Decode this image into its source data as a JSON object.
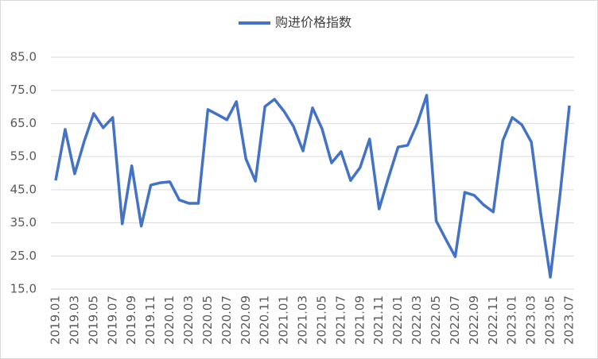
{
  "chart_data": {
    "type": "line",
    "categories": [
      "2019.01",
      null,
      "2019.03",
      null,
      "2019.05",
      null,
      "2019.07",
      null,
      "2019.09",
      null,
      "2019.11",
      null,
      "2020.01",
      null,
      "2020.03",
      null,
      "2020.05",
      null,
      "2020.07",
      null,
      "2020.09",
      null,
      "2020.11",
      null,
      "2021.01",
      null,
      "2021.03",
      null,
      "2021.05",
      null,
      "2021.07",
      null,
      "2021.09",
      null,
      "2021.11",
      null,
      "2022.01",
      null,
      "2022.03",
      null,
      "2022.05",
      null,
      "2022.07",
      null,
      "2022.09",
      null,
      "2022.11",
      null,
      "2023.01",
      null,
      "2023.03",
      null,
      "2023.05",
      null,
      "2023.07"
    ],
    "series": [
      {
        "name": "购进价格指数",
        "color": "#4472c4",
        "values": [
          47.8,
          63.2,
          49.8,
          59.6,
          68.0,
          63.7,
          66.8,
          34.7,
          52.2,
          34.0,
          46.4,
          47.1,
          47.4,
          41.9,
          40.9,
          40.9,
          69.2,
          67.7,
          66.1,
          71.6,
          54.3,
          47.6,
          70.1,
          72.3,
          68.7,
          64.1,
          56.7,
          69.7,
          63.4,
          53.1,
          56.5,
          47.8,
          51.7,
          60.3,
          39.2,
          48.8,
          57.9,
          58.4,
          64.9,
          73.5,
          35.6,
          30.1,
          24.8,
          44.2,
          43.3,
          40.4,
          38.3,
          59.8,
          66.8,
          64.6,
          59.4,
          37.5,
          18.6,
          43.1,
          70.4
        ]
      }
    ],
    "ylim": [
      15,
      85
    ],
    "yticks": [
      {
        "value": 15,
        "label": "15.0"
      },
      {
        "value": 25,
        "label": "25.0"
      },
      {
        "value": 35,
        "label": "35.0"
      },
      {
        "value": 45,
        "label": "45.0"
      },
      {
        "value": 55,
        "label": "55.0"
      },
      {
        "value": 65,
        "label": "65.0"
      },
      {
        "value": 75,
        "label": "75.0"
      },
      {
        "value": 85,
        "label": "85.0"
      }
    ],
    "grid": true,
    "legend": "top"
  }
}
